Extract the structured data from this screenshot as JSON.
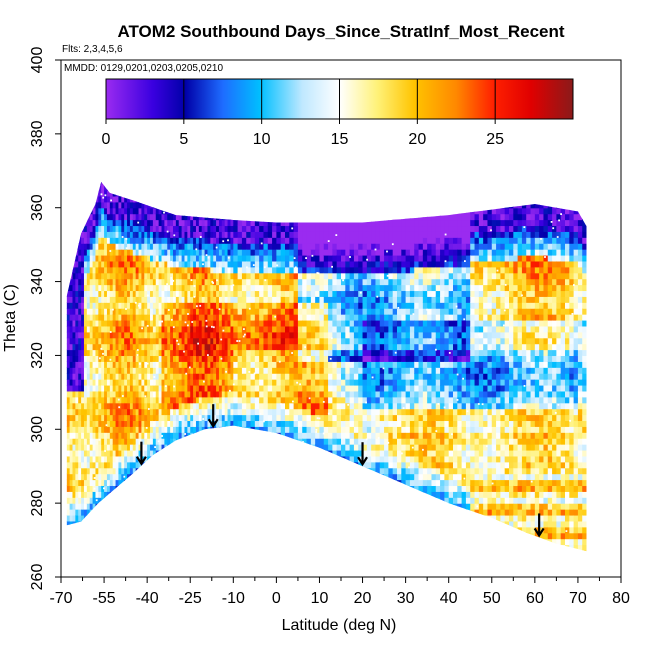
{
  "chart_data": {
    "type": "heatmap",
    "title": "ATOM2 Southbound Days_Since_StratInf_Most_Recent",
    "subtitle": "Flts: 2,3,4,5,6",
    "annotation": "MMDD: 0129,0201,0203,0205,0210",
    "xlabel": "Latitude (deg N)",
    "ylabel": "Theta (C)",
    "xlim": [
      -70,
      80
    ],
    "ylim": [
      260,
      400
    ],
    "x_ticks": [
      -70,
      -55,
      -40,
      -25,
      -10,
      0,
      10,
      20,
      30,
      40,
      50,
      60,
      70,
      80
    ],
    "x_tick_labels": [
      "-70",
      "-55",
      "-40",
      "-25",
      "-10",
      "0",
      "10",
      "20",
      "30",
      "40",
      "50",
      "60",
      "70",
      "80"
    ],
    "y_ticks": [
      260,
      280,
      300,
      320,
      340,
      360,
      380,
      400
    ],
    "y_tick_labels": [
      "260",
      "280",
      "300",
      "320",
      "340",
      "360",
      "380",
      "400"
    ],
    "colorbar": {
      "min": 0,
      "max": 30,
      "ticks": [
        0,
        5,
        10,
        15,
        20,
        25
      ],
      "tick_labels": [
        "0",
        "5",
        "10",
        "15",
        "20",
        "25"
      ],
      "colors": [
        "#8a2be2",
        "#0000cd",
        "#1e90ff",
        "#00bfff",
        "#ffffff",
        "#ffd700",
        "#ff8c00",
        "#ff0000",
        "#8b1a1a"
      ]
    },
    "arrows_latitude": [
      -42,
      -17,
      20,
      61
    ],
    "grid": false,
    "legend": "colorbar-top"
  }
}
